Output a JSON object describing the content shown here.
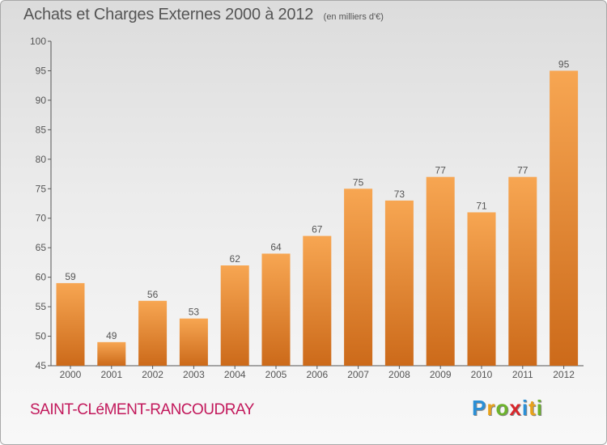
{
  "header": {
    "title": "Achats et Charges Externes 2000 à 2012",
    "subtitle": "(en milliers d'€)"
  },
  "commune": "SAINT-CLéMENT-RANCOUDRAY",
  "logo": {
    "letters": [
      "P",
      "r",
      "o",
      "x",
      "i",
      "t",
      "i"
    ],
    "colors": [
      "#2a8fd6",
      "#e8a21a",
      "#6cb32c",
      "#d8262b",
      "#2a8fd6",
      "#e8a21a",
      "#6cb32c"
    ]
  },
  "colors": {
    "bar_top": "#f7a652",
    "bar_bottom": "#cc6a1a",
    "axis": "#555555",
    "title": "#555555",
    "commune": "#c2185b"
  },
  "chart_data": {
    "type": "bar",
    "title": "Achats et Charges Externes 2000 à 2012",
    "subtitle": "(en milliers d'€)",
    "categories": [
      "2000",
      "2001",
      "2002",
      "2003",
      "2004",
      "2005",
      "2006",
      "2007",
      "2008",
      "2009",
      "2010",
      "2011",
      "2012"
    ],
    "values": [
      59,
      49,
      56,
      53,
      62,
      64,
      67,
      75,
      73,
      77,
      71,
      77,
      95
    ],
    "ylim": [
      45,
      100
    ],
    "yticks": [
      45,
      50,
      55,
      60,
      65,
      70,
      75,
      80,
      85,
      90,
      95,
      100
    ],
    "grid": false,
    "data_labels": true
  }
}
